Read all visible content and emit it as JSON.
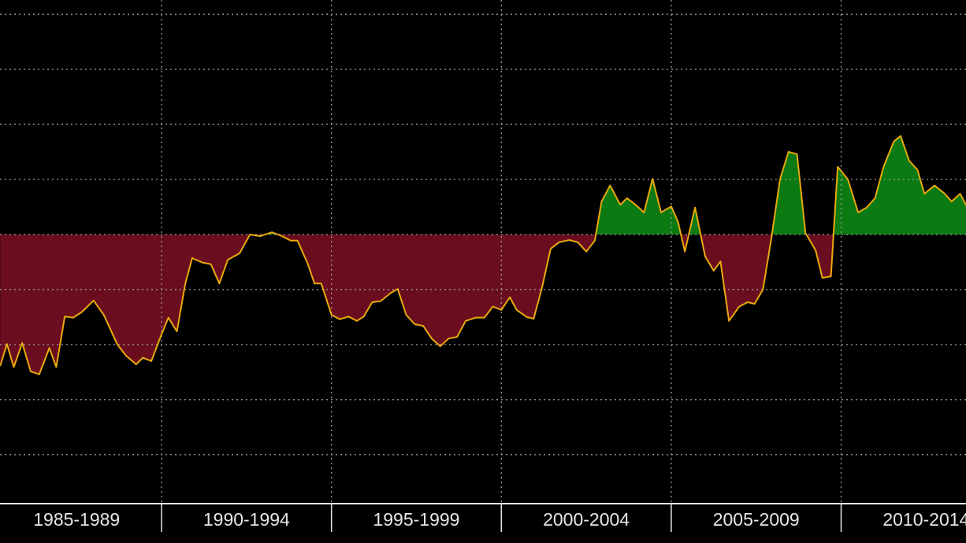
{
  "chart_data": {
    "type": "area",
    "categories": [
      "1985-1989",
      "1990-1994",
      "1995-1999",
      "2000-2004",
      "2005-2009",
      "2010-2014"
    ],
    "x": [
      0.05,
      0.09,
      0.13,
      0.18,
      0.23,
      0.28,
      0.34,
      0.38,
      0.43,
      0.48,
      0.53,
      0.6,
      0.66,
      0.74,
      0.79,
      0.85,
      0.89,
      0.94,
      1.0,
      1.04,
      1.09,
      1.14,
      1.18,
      1.24,
      1.29,
      1.34,
      1.39,
      1.46,
      1.52,
      1.58,
      1.65,
      1.71,
      1.76,
      1.8,
      1.86,
      1.9,
      1.94,
      2.0,
      2.05,
      2.1,
      2.15,
      2.19,
      2.24,
      2.29,
      2.35,
      2.39,
      2.44,
      2.49,
      2.54,
      2.59,
      2.64,
      2.69,
      2.74,
      2.79,
      2.85,
      2.9,
      2.95,
      3.0,
      3.05,
      3.09,
      3.15,
      3.19,
      3.24,
      3.29,
      3.34,
      3.4,
      3.45,
      3.5,
      3.55,
      3.59,
      3.64,
      3.7,
      3.74,
      3.79,
      3.84,
      3.89,
      3.94,
      4.0,
      4.04,
      4.08,
      4.14,
      4.2,
      4.25,
      4.29,
      4.34,
      4.4,
      4.45,
      4.49,
      4.54,
      4.59,
      4.64,
      4.69,
      4.74,
      4.79,
      4.85,
      4.89,
      4.94,
      4.98,
      5.04,
      5.1,
      5.15,
      5.2,
      5.25,
      5.31,
      5.35,
      5.4,
      5.45,
      5.49,
      5.55,
      5.61,
      5.65,
      5.7,
      5.74
    ],
    "values": [
      -2.39,
      -1.99,
      -2.41,
      -1.97,
      -2.49,
      -2.54,
      -2.06,
      -2.41,
      -1.49,
      -1.51,
      -1.41,
      -1.2,
      -1.46,
      -2.0,
      -2.2,
      -2.36,
      -2.24,
      -2.3,
      -1.81,
      -1.51,
      -1.76,
      -0.89,
      -0.43,
      -0.51,
      -0.54,
      -0.89,
      -0.46,
      -0.34,
      0,
      -0.03,
      0.04,
      -0.03,
      -0.11,
      -0.11,
      -0.53,
      -0.89,
      -0.89,
      -1.46,
      -1.54,
      -1.49,
      -1.57,
      -1.49,
      -1.23,
      -1.21,
      -1.06,
      -0.99,
      -1.46,
      -1.63,
      -1.66,
      -1.89,
      -2.03,
      -1.89,
      -1.86,
      -1.57,
      -1.51,
      -1.51,
      -1.31,
      -1.37,
      -1.14,
      -1.37,
      -1.5,
      -1.53,
      -0.96,
      -0.26,
      -0.14,
      -0.1,
      -0.14,
      -0.31,
      -0.11,
      0.6,
      0.89,
      0.54,
      0.66,
      0.54,
      0.4,
      1.01,
      0.4,
      0.51,
      0.23,
      -0.31,
      0.49,
      -0.4,
      -0.66,
      -0.49,
      -1.57,
      -1.31,
      -1.23,
      -1.26,
      -1.0,
      -0.06,
      1.0,
      1.5,
      1.46,
      0.03,
      -0.29,
      -0.79,
      -0.76,
      1.23,
      1.0,
      0.4,
      0.49,
      0.66,
      1.23,
      1.69,
      1.79,
      1.34,
      1.17,
      0.74,
      0.89,
      0.74,
      0.6,
      0.74,
      0.51
    ],
    "line_color": "#e8a90c",
    "positive_color": "#0b7a12",
    "negative_color": "#6a0e1f",
    "xlim": [
      0.049,
      5.735
    ],
    "xticks": [
      1,
      2,
      3,
      4,
      5
    ],
    "ylim": [
      -4.89,
      4.26
    ],
    "yticks": [
      -4,
      -3,
      -2,
      -1,
      0,
      1,
      2,
      3,
      4
    ],
    "grid": true
  }
}
